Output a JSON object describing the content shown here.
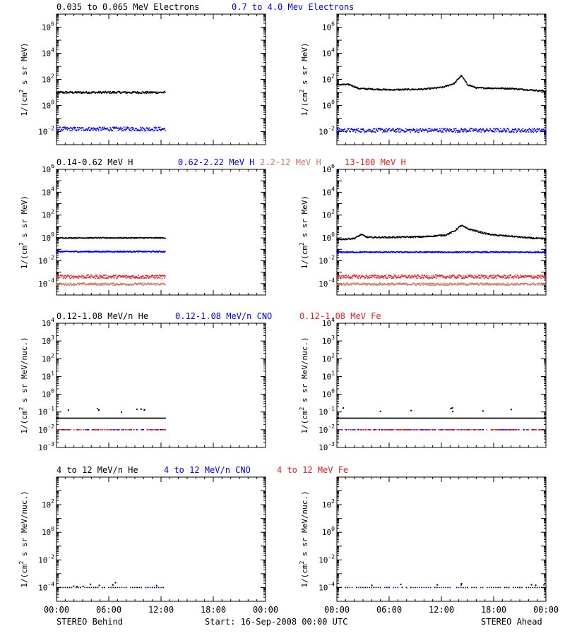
{
  "colors": {
    "black": "#000000",
    "blue": "#0000ff",
    "salmon": "#c87a6a",
    "red": "#ee1c1c"
  },
  "footer": {
    "left": "STEREO Behind",
    "center": "Start: 16-Sep-2008 00:00 UTC",
    "right": "STEREO Ahead"
  },
  "chart_data": [
    {
      "type": "scatter",
      "row": 0,
      "spacecraft": "STEREO Behind",
      "title_parts": [
        {
          "text": "0.035 to 0.065 MeV Electrons",
          "color": "#000000"
        },
        {
          "text": "0.7 to 4.0 Mev Electrons",
          "color": "#0000ff"
        }
      ],
      "ylabel": "1/(cm^2 s sr MeV)",
      "yscale": "log",
      "ylim_exp": [
        -3,
        7
      ],
      "yticks": [
        "10^-2",
        "10^0",
        "10^2",
        "10^4",
        "10^6"
      ],
      "x_hours": [
        0,
        24
      ],
      "xticks": [
        "00:00",
        "06:00",
        "12:00",
        "18:00",
        "00:00"
      ],
      "series": [
        {
          "color": "#000000",
          "data_end_hour": 12.5,
          "log10_level": 1.0,
          "scatter": 0.08
        },
        {
          "color": "#0000ff",
          "data_end_hour": 12.5,
          "log10_level": -1.8,
          "scatter": 0.15
        }
      ]
    },
    {
      "type": "scatter",
      "row": 0,
      "spacecraft": "STEREO Ahead",
      "ylabel": "1/(cm^2 s sr MeV)",
      "yscale": "log",
      "ylim_exp": [
        -3,
        7
      ],
      "yticks": [
        "10^-2",
        "10^0",
        "10^2",
        "10^4",
        "10^6"
      ],
      "x_hours": [
        0,
        24
      ],
      "xticks": [
        "00:00",
        "06:00",
        "12:00",
        "18:00",
        "00:00"
      ],
      "series": [
        {
          "color": "#000000",
          "data_end_hour": 24,
          "profile": [
            [
              0,
              1.6
            ],
            [
              1.5,
              1.6
            ],
            [
              2.5,
              1.3
            ],
            [
              6,
              1.2
            ],
            [
              10,
              1.25
            ],
            [
              12.2,
              1.4
            ],
            [
              13.5,
              1.7
            ],
            [
              14.3,
              2.3
            ],
            [
              15,
              1.6
            ],
            [
              16,
              1.35
            ],
            [
              20,
              1.3
            ],
            [
              22,
              1.2
            ],
            [
              24,
              1.1
            ]
          ],
          "scatter": 0.05
        },
        {
          "color": "#0000ff",
          "data_end_hour": 24,
          "log10_level": -1.9,
          "scatter": 0.15
        }
      ]
    },
    {
      "type": "scatter",
      "row": 1,
      "spacecraft": "STEREO Behind",
      "title_parts": [
        {
          "text": "0.14-0.62 MeV H",
          "color": "#000000"
        },
        {
          "text": "0.62-2.22 MeV H",
          "color": "#0000ff"
        },
        {
          "text": "2.2-12 MeV H",
          "color": "#c87a6a"
        },
        {
          "text": "13-100 MeV H",
          "color": "#ee1c1c"
        }
      ],
      "ylabel": "1/(cm^2 s sr MeV)",
      "yscale": "log",
      "ylim_exp": [
        -5,
        6
      ],
      "yticks": [
        "10^-4",
        "10^-2",
        "10^0",
        "10^2",
        "10^4",
        "10^6"
      ],
      "x_hours": [
        0,
        24
      ],
      "xticks": [
        "00:00",
        "06:00",
        "12:00",
        "18:00",
        "00:00"
      ],
      "series": [
        {
          "color": "#000000",
          "data_end_hour": 12.5,
          "log10_level": 0.0,
          "scatter": 0.04
        },
        {
          "color": "#0000ff",
          "data_end_hour": 12.5,
          "log10_level": -1.2,
          "scatter": 0.05
        },
        {
          "color": "#c87a6a",
          "data_end_hour": 12.5,
          "log10_level": -4.05,
          "scatter": 0.1
        },
        {
          "color": "#ee1c1c",
          "data_end_hour": 12.5,
          "log10_level": -3.4,
          "scatter": 0.15
        }
      ]
    },
    {
      "type": "scatter",
      "row": 1,
      "spacecraft": "STEREO Ahead",
      "ylabel": "1/(cm^2 s sr MeV)",
      "yscale": "log",
      "ylim_exp": [
        -5,
        6
      ],
      "yticks": [
        "10^-4",
        "10^-2",
        "10^0",
        "10^2",
        "10^4",
        "10^6"
      ],
      "x_hours": [
        0,
        24
      ],
      "xticks": [
        "00:00",
        "06:00",
        "12:00",
        "18:00",
        "00:00"
      ],
      "series": [
        {
          "color": "#000000",
          "data_end_hour": 24,
          "profile": [
            [
              0,
              -0.15
            ],
            [
              2,
              -0.05
            ],
            [
              2.8,
              0.3
            ],
            [
              3.5,
              0.05
            ],
            [
              6,
              0.05
            ],
            [
              10,
              0.1
            ],
            [
              12.5,
              0.25
            ],
            [
              13.5,
              0.6
            ],
            [
              14.3,
              1.1
            ],
            [
              15,
              0.8
            ],
            [
              16,
              0.6
            ],
            [
              17,
              0.4
            ],
            [
              18,
              0.25
            ],
            [
              20,
              0.15
            ],
            [
              22,
              0.0
            ],
            [
              24,
              -0.1
            ]
          ],
          "scatter": 0.06
        },
        {
          "color": "#0000ff",
          "data_end_hour": 24,
          "log10_level": -1.25,
          "scatter": 0.05
        },
        {
          "color": "#c87a6a",
          "data_end_hour": 24,
          "log10_level": -4.05,
          "scatter": 0.1
        },
        {
          "color": "#ee1c1c",
          "data_end_hour": 24,
          "log10_level": -3.4,
          "scatter": 0.15
        }
      ]
    },
    {
      "type": "scatter",
      "row": 2,
      "spacecraft": "STEREO Behind",
      "title_parts": [
        {
          "text": "0.12-1.08 MeV/n He",
          "color": "#000000"
        },
        {
          "text": "0.12-1.08 MeV/n CNO",
          "color": "#0000ff"
        },
        {
          "text": "0.12-1.08 MeV Fe",
          "color": "#ee1c1c"
        }
      ],
      "ylabel": "1/(cm^2 s sr MeV/nuc.)",
      "yscale": "log",
      "ylim_exp": [
        -3,
        4
      ],
      "yticks": [
        "10^-3",
        "10^-2",
        "10^-1",
        "10^0",
        "10^1",
        "10^2",
        "10^3",
        "10^4"
      ],
      "x_hours": [
        0,
        24
      ],
      "xticks": [
        "00:00",
        "06:00",
        "12:00",
        "18:00",
        "00:00"
      ],
      "series": [
        {
          "color": "#000000",
          "data_end_hour": 12.5,
          "log10_level": -1.35,
          "scatter": 0.0,
          "outlier_log10": -0.9
        },
        {
          "color": "#0000ff",
          "data_end_hour": 12.5,
          "log10_level": -2.0,
          "scatter": 0.0
        },
        {
          "color": "#ee1c1c",
          "data_end_hour": 12.5,
          "log10_level": -2.0,
          "scatter": 0.0
        }
      ]
    },
    {
      "type": "scatter",
      "row": 2,
      "spacecraft": "STEREO Ahead",
      "ylabel": "1/(cm^2 s sr MeV/nuc.)",
      "yscale": "log",
      "ylim_exp": [
        -3,
        4
      ],
      "yticks": [
        "10^-3",
        "10^-2",
        "10^-1",
        "10^0",
        "10^1",
        "10^2",
        "10^3",
        "10^4"
      ],
      "x_hours": [
        0,
        24
      ],
      "xticks": [
        "00:00",
        "06:00",
        "12:00",
        "18:00",
        "00:00"
      ],
      "series": [
        {
          "color": "#000000",
          "data_end_hour": 24,
          "log10_level": -1.35,
          "scatter": 0.0,
          "outlier_log10": -0.9
        },
        {
          "color": "#0000ff",
          "data_end_hour": 24,
          "log10_level": -2.0,
          "scatter": 0.0
        },
        {
          "color": "#ee1c1c",
          "data_end_hour": 24,
          "log10_level": -2.0,
          "scatter": 0.0
        }
      ]
    },
    {
      "type": "scatter",
      "row": 3,
      "spacecraft": "STEREO Behind",
      "title_parts": [
        {
          "text": "4 to 12 MeV/n He",
          "color": "#000000"
        },
        {
          "text": "4 to 12 MeV/n CNO",
          "color": "#0000ff"
        },
        {
          "text": "4 to 12 MeV Fe",
          "color": "#ee1c1c"
        }
      ],
      "ylabel": "1/(cm^2 s sr MeV/nuc.)",
      "yscale": "log",
      "ylim_exp": [
        -5,
        4
      ],
      "yticks": [
        "10^-4",
        "10^-2",
        "10^0",
        "10^2"
      ],
      "x_hours": [
        0,
        24
      ],
      "xticks": [
        "00:00",
        "06:00",
        "12:00",
        "18:00",
        "00:00"
      ],
      "series": [
        {
          "color": "#0000ff",
          "data_end_hour": 12.5,
          "log10_level": -4.0,
          "scatter": 0.0,
          "sparse": true
        },
        {
          "color": "#000000",
          "data_end_hour": 12.5,
          "log10_level": -4.0,
          "scatter": 0.0,
          "sparse": true,
          "outlier_log10": -3.8
        }
      ]
    },
    {
      "type": "scatter",
      "row": 3,
      "spacecraft": "STEREO Ahead",
      "ylabel": "1/(cm^2 s sr MeV/nuc.)",
      "yscale": "log",
      "ylim_exp": [
        -5,
        4
      ],
      "yticks": [
        "10^-4",
        "10^-2",
        "10^0",
        "10^2"
      ],
      "x_hours": [
        0,
        24
      ],
      "xticks": [
        "00:00",
        "06:00",
        "12:00",
        "18:00",
        "00:00"
      ],
      "series": [
        {
          "color": "#0000ff",
          "data_end_hour": 24,
          "log10_level": -4.0,
          "scatter": 0.0,
          "sparse": true
        },
        {
          "color": "#000000",
          "data_end_hour": 24,
          "log10_level": -4.0,
          "scatter": 0.0,
          "sparse": true,
          "outlier_log10": -3.8
        }
      ]
    }
  ]
}
